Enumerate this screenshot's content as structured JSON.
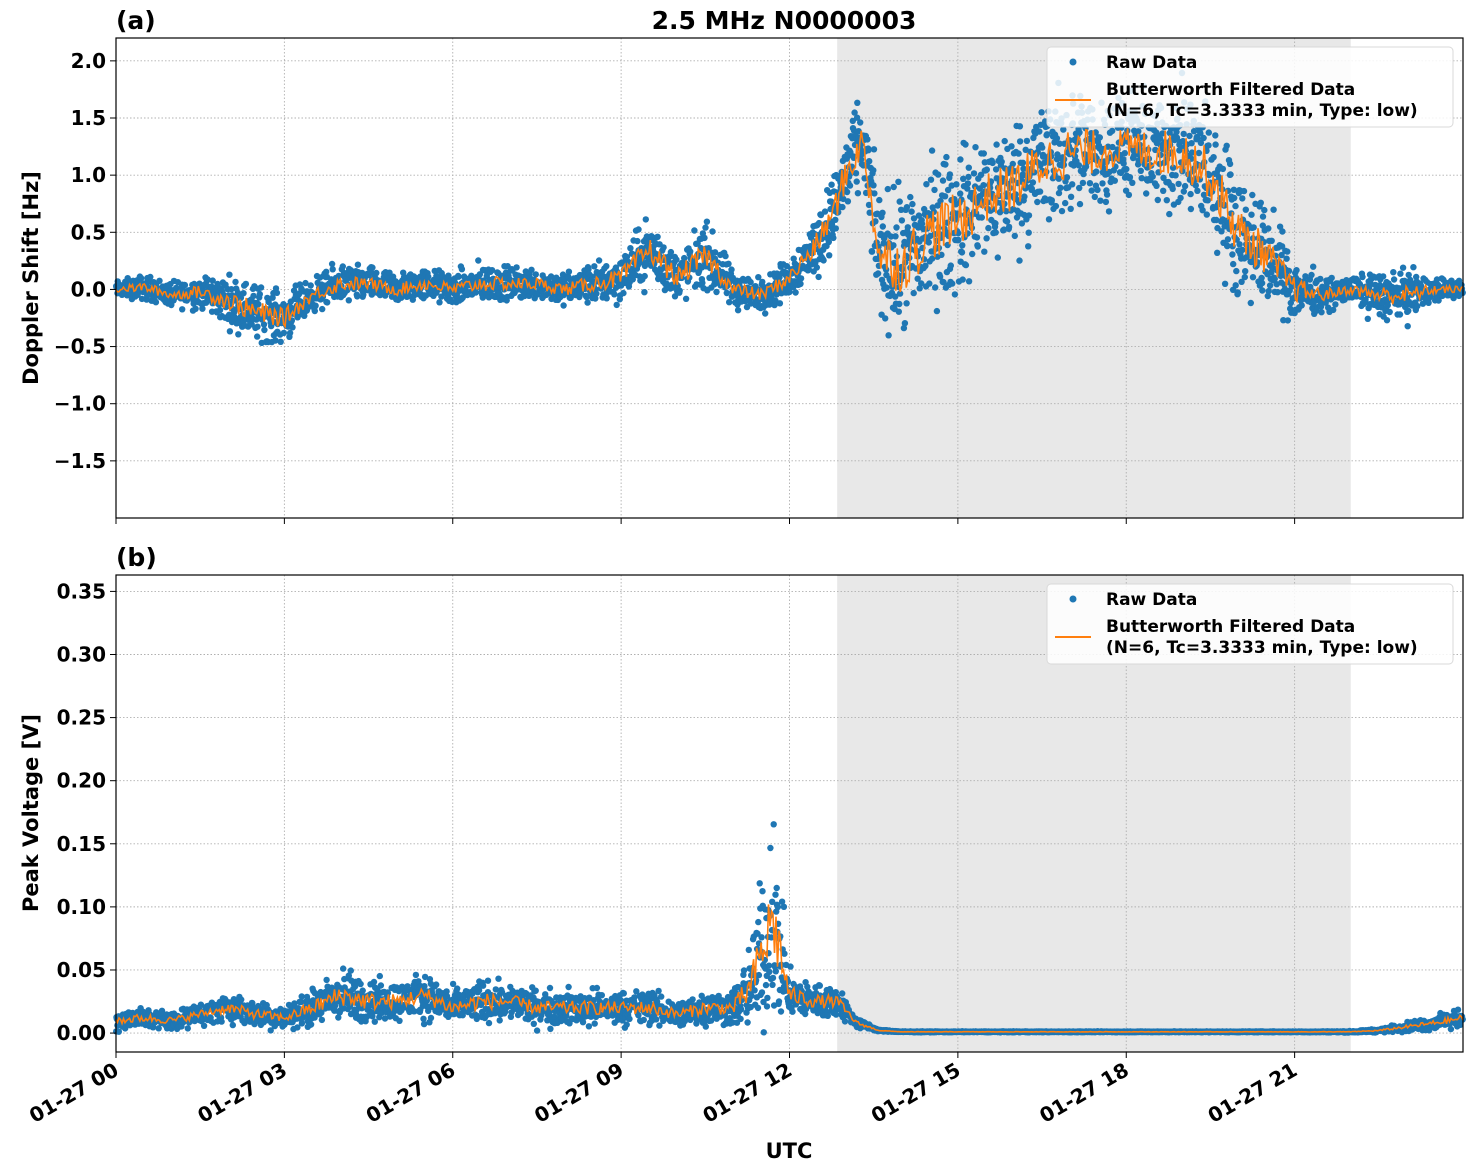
{
  "title": "2.5 MHz N0000003",
  "colors": {
    "raw": "#1f77b4",
    "filtered": "#ff7f0e",
    "shade": "#e8e8e8",
    "grid": "#b0b0b0"
  },
  "legend": {
    "raw": "Raw Data",
    "filtered_line1": "Butterworth Filtered Data",
    "filtered_line2": "(N=6, Tc=3.3333 min, Type: low)"
  },
  "xlabel": "UTC",
  "x_ticks": [
    {
      "hour": 0,
      "label": "01-27 00"
    },
    {
      "hour": 3,
      "label": "01-27 03"
    },
    {
      "hour": 6,
      "label": "01-27 06"
    },
    {
      "hour": 9,
      "label": "01-27 09"
    },
    {
      "hour": 12,
      "label": "01-27 12"
    },
    {
      "hour": 15,
      "label": "01-27 15"
    },
    {
      "hour": 18,
      "label": "01-27 18"
    },
    {
      "hour": 21,
      "label": "01-27 21"
    }
  ],
  "chart_data": [
    {
      "type": "scatter",
      "panel": "(a)",
      "ylabel": "Doppler Shift [Hz]",
      "xlim_hours": [
        0,
        24
      ],
      "ylim": [
        -2.0,
        2.2
      ],
      "y_ticks": [
        {
          "v": 2.0,
          "label": "2.0"
        },
        {
          "v": 1.5,
          "label": "1.5"
        },
        {
          "v": 1.0,
          "label": "1.0"
        },
        {
          "v": 0.5,
          "label": "0.5"
        },
        {
          "v": 0.0,
          "label": "0.0"
        },
        {
          "v": -0.5,
          "label": "−0.5"
        },
        {
          "v": -1.0,
          "label": "−1.0"
        },
        {
          "v": -1.5,
          "label": "−1.5"
        }
      ],
      "shaded_span_hours": [
        12.85,
        22.0
      ],
      "grid": true,
      "legend_position": "upper right",
      "series": [
        {
          "name": "Raw Data",
          "style": "points",
          "x_hours": [
            0.0,
            0.5,
            1.0,
            1.5,
            2.0,
            2.5,
            3.0,
            3.5,
            4.0,
            4.5,
            5.0,
            5.5,
            6.0,
            6.5,
            7.0,
            7.5,
            8.0,
            8.5,
            9.0,
            9.5,
            10.0,
            10.5,
            11.0,
            11.5,
            12.0,
            12.5,
            12.8,
            13.0,
            13.3,
            13.6,
            14.0,
            14.5,
            15.0,
            15.5,
            16.0,
            16.5,
            17.0,
            17.5,
            18.0,
            18.5,
            19.0,
            19.5,
            20.0,
            20.5,
            21.0,
            21.5,
            22.0,
            22.5,
            23.0,
            23.5,
            24.0
          ],
          "y_center": [
            0.0,
            0.02,
            -0.05,
            -0.02,
            -0.1,
            -0.2,
            -0.25,
            -0.05,
            0.05,
            0.05,
            0.0,
            0.05,
            0.0,
            0.05,
            0.05,
            0.05,
            0.0,
            0.05,
            0.1,
            0.35,
            0.1,
            0.3,
            0.0,
            -0.05,
            0.1,
            0.4,
            0.7,
            1.0,
            1.3,
            0.3,
            0.2,
            0.5,
            0.6,
            0.8,
            0.9,
            1.1,
            1.2,
            1.2,
            1.25,
            1.2,
            1.2,
            1.0,
            0.5,
            0.3,
            0.0,
            -0.05,
            0.0,
            -0.05,
            -0.05,
            0.0,
            0.0
          ],
          "y_spread": [
            0.1,
            0.15,
            0.15,
            0.2,
            0.3,
            0.35,
            0.3,
            0.2,
            0.25,
            0.2,
            0.2,
            0.2,
            0.2,
            0.25,
            0.2,
            0.2,
            0.2,
            0.25,
            0.3,
            0.4,
            0.3,
            0.4,
            0.25,
            0.2,
            0.25,
            0.4,
            0.45,
            0.6,
            0.5,
            0.8,
            0.9,
            0.9,
            0.9,
            0.8,
            0.8,
            0.8,
            0.8,
            0.7,
            0.6,
            0.7,
            0.8,
            0.8,
            0.8,
            0.6,
            0.4,
            0.2,
            0.15,
            0.3,
            0.3,
            0.15,
            0.1
          ]
        },
        {
          "name": "Butterworth Filtered Data (N=6, Tc=3.3333 min, Type: low)",
          "style": "line",
          "x_hours": [
            0.0,
            0.5,
            1.0,
            1.5,
            2.0,
            2.5,
            3.0,
            3.5,
            4.0,
            4.5,
            5.0,
            5.5,
            6.0,
            6.5,
            7.0,
            7.5,
            8.0,
            8.5,
            9.0,
            9.5,
            10.0,
            10.5,
            11.0,
            11.5,
            12.0,
            12.5,
            12.8,
            13.0,
            13.3,
            13.6,
            14.0,
            14.5,
            15.0,
            15.5,
            16.0,
            16.5,
            17.0,
            17.5,
            18.0,
            18.5,
            19.0,
            19.5,
            20.0,
            20.5,
            21.0,
            21.5,
            22.0,
            22.5,
            23.0,
            23.5,
            24.0
          ],
          "y": [
            0.0,
            0.02,
            -0.05,
            -0.02,
            -0.1,
            -0.2,
            -0.25,
            -0.05,
            0.05,
            0.05,
            0.0,
            0.05,
            0.0,
            0.05,
            0.05,
            0.05,
            0.0,
            0.05,
            0.1,
            0.35,
            0.1,
            0.3,
            0.0,
            -0.05,
            0.1,
            0.4,
            0.7,
            1.0,
            1.3,
            0.3,
            0.2,
            0.5,
            0.6,
            0.8,
            0.9,
            1.1,
            1.2,
            1.2,
            1.25,
            1.2,
            1.2,
            1.0,
            0.5,
            0.3,
            0.0,
            -0.05,
            0.0,
            -0.05,
            -0.05,
            0.0,
            0.0
          ]
        }
      ]
    },
    {
      "type": "scatter",
      "panel": "(b)",
      "ylabel": "Peak Voltage [V]",
      "xlim_hours": [
        0,
        24
      ],
      "ylim": [
        -0.015,
        0.363
      ],
      "y_ticks": [
        {
          "v": 0.35,
          "label": "0.35"
        },
        {
          "v": 0.3,
          "label": "0.30"
        },
        {
          "v": 0.25,
          "label": "0.25"
        },
        {
          "v": 0.2,
          "label": "0.20"
        },
        {
          "v": 0.15,
          "label": "0.15"
        },
        {
          "v": 0.1,
          "label": "0.10"
        },
        {
          "v": 0.05,
          "label": "0.05"
        },
        {
          "v": 0.0,
          "label": "0.00"
        }
      ],
      "shaded_span_hours": [
        12.85,
        22.0
      ],
      "grid": true,
      "legend_position": "upper right",
      "series": [
        {
          "name": "Raw Data",
          "style": "points",
          "x_hours": [
            0.0,
            0.5,
            1.0,
            1.5,
            2.0,
            2.5,
            3.0,
            3.5,
            4.0,
            4.5,
            5.0,
            5.5,
            6.0,
            6.5,
            7.0,
            7.5,
            8.0,
            8.5,
            9.0,
            9.5,
            10.0,
            10.5,
            11.0,
            11.3,
            11.7,
            12.0,
            12.5,
            12.85,
            13.2,
            13.6,
            14.0,
            16.0,
            18.0,
            20.0,
            21.0,
            22.0,
            22.5,
            23.0,
            23.5,
            24.0
          ],
          "y_center": [
            0.01,
            0.012,
            0.01,
            0.015,
            0.02,
            0.015,
            0.012,
            0.02,
            0.03,
            0.025,
            0.025,
            0.03,
            0.02,
            0.025,
            0.025,
            0.02,
            0.02,
            0.02,
            0.02,
            0.02,
            0.015,
            0.02,
            0.02,
            0.035,
            0.09,
            0.03,
            0.025,
            0.025,
            0.008,
            0.002,
            0.001,
            0.001,
            0.001,
            0.001,
            0.001,
            0.001,
            0.002,
            0.005,
            0.008,
            0.012
          ],
          "y_spread": [
            0.012,
            0.012,
            0.01,
            0.012,
            0.015,
            0.015,
            0.012,
            0.02,
            0.03,
            0.025,
            0.022,
            0.025,
            0.02,
            0.025,
            0.02,
            0.02,
            0.02,
            0.02,
            0.018,
            0.02,
            0.015,
            0.02,
            0.02,
            0.05,
            0.12,
            0.025,
            0.02,
            0.018,
            0.006,
            0.001,
            0.0005,
            0.0005,
            0.0005,
            0.0005,
            0.0005,
            0.0008,
            0.002,
            0.005,
            0.008,
            0.01
          ]
        },
        {
          "name": "Butterworth Filtered Data (N=6, Tc=3.3333 min, Type: low)",
          "style": "line",
          "x_hours": [
            0.0,
            0.5,
            1.0,
            1.5,
            2.0,
            2.5,
            3.0,
            3.5,
            4.0,
            4.5,
            5.0,
            5.5,
            6.0,
            6.5,
            7.0,
            7.5,
            8.0,
            8.5,
            9.0,
            9.5,
            10.0,
            10.5,
            11.0,
            11.3,
            11.7,
            12.0,
            12.5,
            12.85,
            13.2,
            13.6,
            14.0,
            16.0,
            18.0,
            20.0,
            21.0,
            22.0,
            22.5,
            23.0,
            23.5,
            24.0
          ],
          "y": [
            0.01,
            0.012,
            0.01,
            0.015,
            0.02,
            0.015,
            0.012,
            0.02,
            0.03,
            0.025,
            0.025,
            0.03,
            0.02,
            0.025,
            0.025,
            0.02,
            0.02,
            0.02,
            0.02,
            0.02,
            0.015,
            0.02,
            0.02,
            0.035,
            0.09,
            0.03,
            0.025,
            0.025,
            0.008,
            0.002,
            0.001,
            0.001,
            0.001,
            0.001,
            0.001,
            0.001,
            0.002,
            0.005,
            0.008,
            0.012
          ]
        }
      ]
    }
  ]
}
